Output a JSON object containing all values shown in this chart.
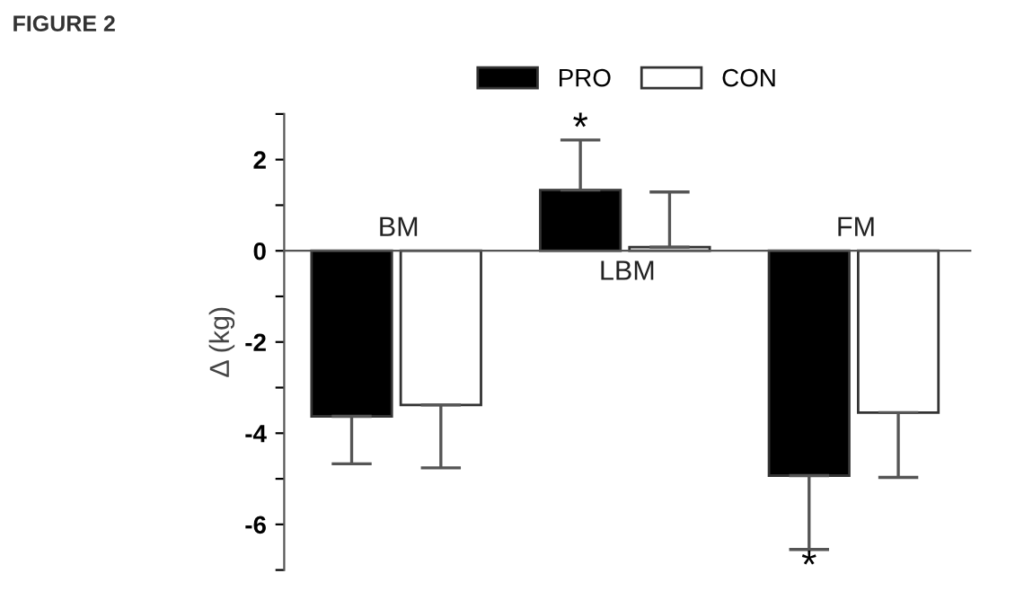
{
  "chart_data": {
    "type": "bar",
    "title": "FIGURE 2",
    "ylabel": "Δ (kg)",
    "categories": [
      "BM",
      "LBM",
      "FM"
    ],
    "series": [
      {
        "name": "PRO",
        "color": "#000000",
        "values": [
          -3.63,
          1.33,
          -4.93
        ],
        "errors": [
          [
            -4.67,
            -3.63
          ],
          [
            1.33,
            2.43
          ],
          [
            -6.55,
            -4.93
          ]
        ]
      },
      {
        "name": "CON",
        "color": "#ffffff",
        "values": [
          -3.38,
          0.08,
          -3.55
        ],
        "errors": [
          [
            -4.76,
            -3.38
          ],
          [
            0.08,
            1.29
          ],
          [
            -4.97,
            -3.55
          ]
        ]
      }
    ],
    "ylim": [
      -7,
      3
    ],
    "yticks": [
      {
        "value": -7,
        "label": null
      },
      -6,
      {
        "value": -5,
        "label": null
      },
      -4,
      {
        "value": -3,
        "label": null
      },
      -2,
      {
        "value": -1,
        "label": null
      },
      0,
      {
        "value": 1,
        "label": null
      },
      2,
      {
        "value": 3,
        "label": null
      }
    ],
    "annotations": [
      "*",
      "*"
    ],
    "legend": "top",
    "grid": false
  }
}
